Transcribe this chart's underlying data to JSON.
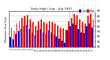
{
  "title": "Daily High / Low - July 2007",
  "ylabel_left": "Milwaukee Dew Point",
  "days": [
    1,
    2,
    3,
    4,
    5,
    6,
    7,
    8,
    9,
    10,
    11,
    12,
    13,
    14,
    15,
    16,
    17,
    18,
    19,
    20,
    21,
    22,
    23,
    24,
    25,
    26,
    27,
    28,
    29,
    30,
    31
  ],
  "high_vals": [
    58,
    50,
    65,
    70,
    76,
    80,
    82,
    74,
    68,
    60,
    70,
    73,
    68,
    65,
    70,
    68,
    65,
    62,
    58,
    56,
    54,
    70,
    76,
    84,
    82,
    74,
    68,
    65,
    80,
    84,
    74
  ],
  "low_vals": [
    38,
    35,
    45,
    50,
    55,
    60,
    63,
    55,
    48,
    42,
    52,
    55,
    48,
    45,
    52,
    48,
    44,
    40,
    36,
    32,
    28,
    52,
    60,
    66,
    63,
    55,
    48,
    46,
    60,
    66,
    58
  ],
  "high_color": "#ff0000",
  "low_color": "#0000cc",
  "bg_color": "#ffffff",
  "grid_color": "#aaaaaa",
  "ylim_min": 20,
  "ylim_max": 90,
  "yticks": [
    20,
    30,
    40,
    50,
    60,
    70,
    80,
    90
  ],
  "ytick_labels": [
    "20",
    "30",
    "40",
    "50",
    "60",
    "70",
    "80",
    "90"
  ],
  "vline_positions": [
    21.5,
    22.5
  ],
  "bar_width": 0.42,
  "legend_labels": [
    "Low",
    "High"
  ]
}
